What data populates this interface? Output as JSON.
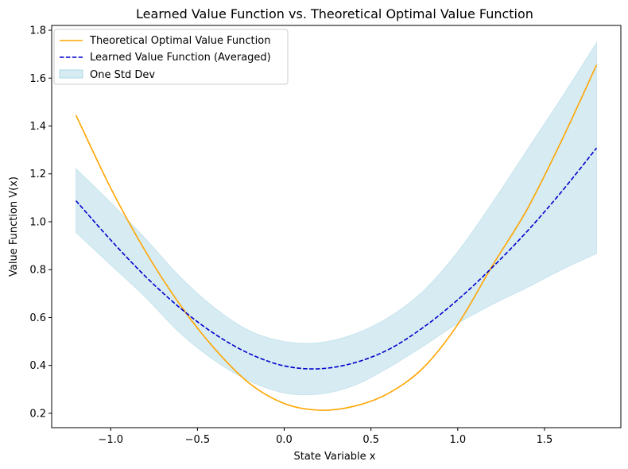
{
  "chart_data": {
    "type": "line",
    "title": "Learned Value Function vs. Theoretical Optimal Value Function",
    "xlabel": "State Variable x",
    "ylabel": "Value Function V(x)",
    "xlim": [
      -1.34,
      1.94
    ],
    "ylim": [
      0.14,
      1.82
    ],
    "grid": false,
    "legend_position": "upper-left",
    "x_ticks": [
      -1.0,
      -0.5,
      0.0,
      0.5,
      1.0,
      1.5
    ],
    "x_tick_labels": [
      "−1.0",
      "−0.5",
      "0.0",
      "0.5",
      "1.0",
      "1.5"
    ],
    "y_ticks": [
      0.2,
      0.4,
      0.6,
      0.8,
      1.0,
      1.2,
      1.4,
      1.6,
      1.8
    ],
    "y_tick_labels": [
      "0.2",
      "0.4",
      "0.6",
      "0.8",
      "1.0",
      "1.2",
      "1.4",
      "1.6",
      "1.8"
    ],
    "x": [
      -1.2,
      -1.0,
      -0.8,
      -0.6,
      -0.4,
      -0.2,
      0.0,
      0.2,
      0.4,
      0.6,
      0.8,
      1.0,
      1.2,
      1.4,
      1.6,
      1.8
    ],
    "series": [
      {
        "name": "Theoretical Optimal Value Function",
        "style": "solid",
        "color": "#ffa500",
        "values": [
          1.445,
          1.141,
          0.877,
          0.653,
          0.469,
          0.325,
          0.241,
          0.213,
          0.229,
          0.283,
          0.389,
          0.571,
          0.817,
          1.052,
          1.341,
          1.655
        ]
      },
      {
        "name": "Learned Value Function (Averaged)",
        "style": "dashed",
        "color": "#0000cd",
        "values": [
          1.088,
          0.924,
          0.772,
          0.64,
          0.531,
          0.449,
          0.398,
          0.386,
          0.41,
          0.466,
          0.558,
          0.674,
          0.81,
          0.96,
          1.127,
          1.308
        ]
      }
    ],
    "band": {
      "name": "One Std Dev",
      "color": "#add8e6",
      "opacity": 0.5,
      "lower": [
        0.955,
        0.82,
        0.685,
        0.535,
        0.42,
        0.335,
        0.285,
        0.28,
        0.315,
        0.39,
        0.48,
        0.575,
        0.655,
        0.725,
        0.8,
        0.867
      ],
      "upper": [
        1.222,
        1.08,
        0.93,
        0.77,
        0.64,
        0.545,
        0.5,
        0.495,
        0.53,
        0.6,
        0.71,
        0.875,
        1.08,
        1.3,
        1.52,
        1.748
      ]
    }
  }
}
